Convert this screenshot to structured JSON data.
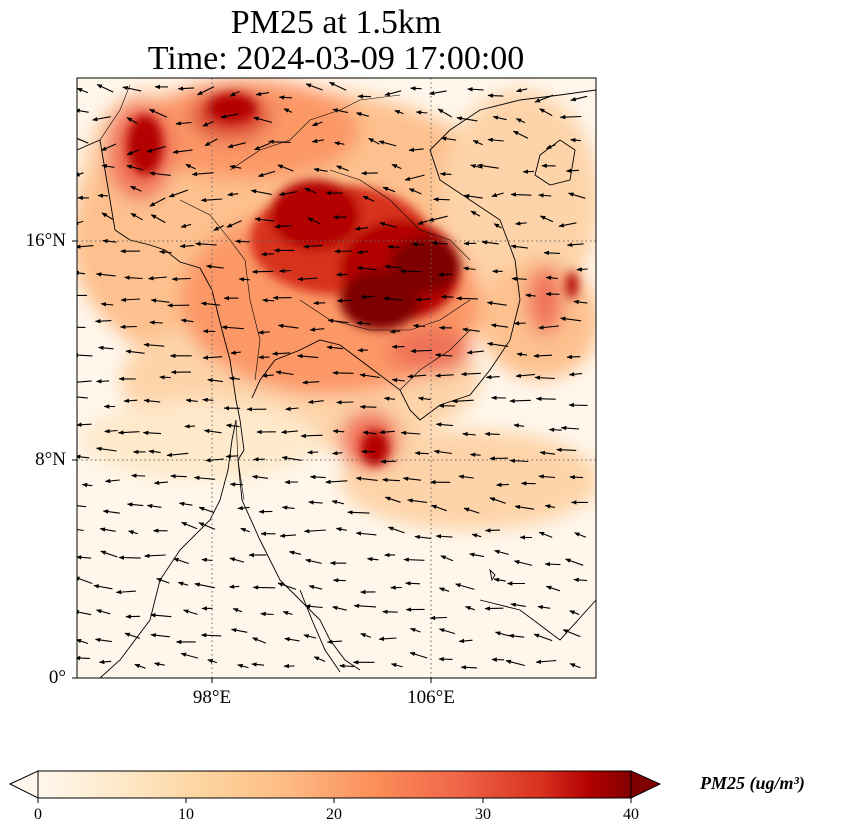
{
  "title": {
    "line1": "PM25 at 1.5km",
    "line2": "Time: 2024-03-09 17:00:00"
  },
  "map": {
    "lon_range": [
      91,
      118
    ],
    "lat_range": [
      0,
      22
    ],
    "lat_ticks": [
      {
        "value": 0,
        "label": "0°"
      },
      {
        "value": 8,
        "label": "8°N"
      },
      {
        "value": 16,
        "label": "16°N"
      }
    ],
    "lon_ticks": [
      {
        "value": 98,
        "label": "98°E"
      },
      {
        "value": 106,
        "label": "106°E"
      }
    ],
    "gridlines": "dotted",
    "features": [
      "pm25-field",
      "wind-vectors",
      "coastlines",
      "country-borders"
    ]
  },
  "colorbar": {
    "cmap": "OrRd",
    "min": 0,
    "max": 40,
    "extend": "both",
    "ticks": [
      "0",
      "10",
      "20",
      "30",
      "40"
    ],
    "label": "PM25 (ug/m³)"
  }
}
